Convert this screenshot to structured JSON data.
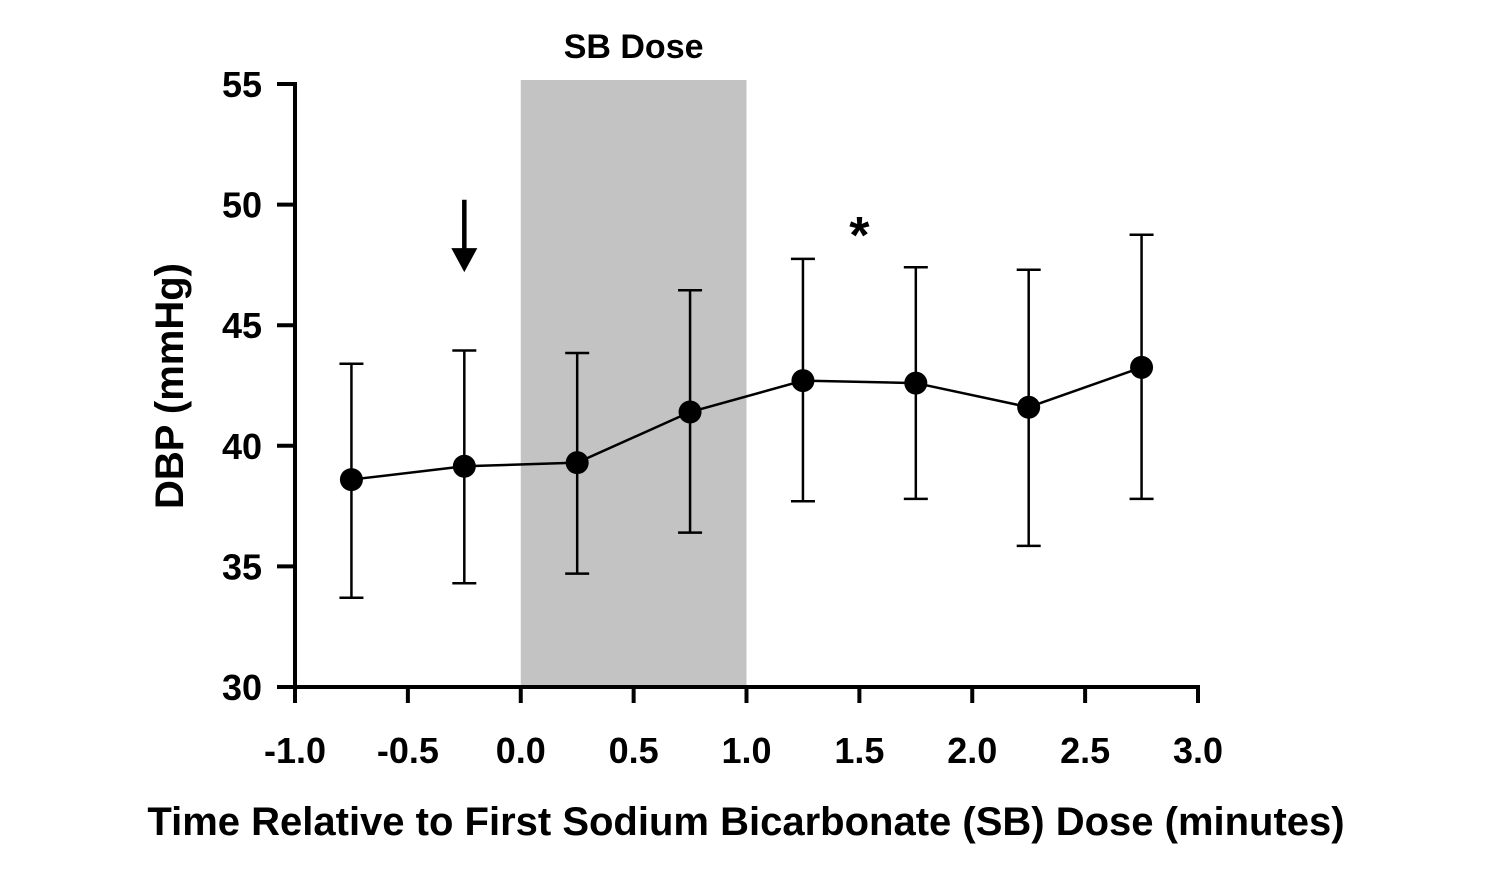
{
  "chart_data": {
    "type": "line",
    "title": "",
    "xlabel": "Time Relative to First Sodium Bicarbonate (SB) Dose (minutes)",
    "ylabel": "DBP (mmHg)",
    "xlim": [
      -1.0,
      3.0
    ],
    "ylim": [
      30,
      55
    ],
    "xticks": [
      "-1.0",
      "-0.5",
      "0.0",
      "0.5",
      "1.0",
      "1.5",
      "2.0",
      "2.5",
      "3.0"
    ],
    "xtick_values": [
      -1.0,
      -0.5,
      0.0,
      0.5,
      1.0,
      1.5,
      2.0,
      2.5,
      3.0
    ],
    "yticks": [
      "30",
      "35",
      "40",
      "45",
      "50",
      "55"
    ],
    "ytick_values": [
      30,
      35,
      40,
      45,
      50,
      55
    ],
    "grid": false,
    "series": [
      {
        "name": "DBP",
        "x": [
          -0.75,
          -0.25,
          0.25,
          0.75,
          1.25,
          1.75,
          2.25,
          2.75
        ],
        "y": [
          38.6,
          39.15,
          39.3,
          41.4,
          42.7,
          42.6,
          41.6,
          43.25
        ],
        "err_low": [
          33.7,
          34.3,
          34.7,
          36.4,
          37.7,
          37.8,
          35.85,
          37.8
        ],
        "err_high": [
          43.4,
          43.95,
          43.85,
          46.45,
          47.75,
          47.4,
          47.3,
          48.75
        ],
        "color": "#000000"
      }
    ],
    "shaded_region": {
      "x_start": 0.0,
      "x_end": 1.0,
      "label": "SB Dose",
      "color": "#c3c3c3"
    },
    "annotations": [
      {
        "type": "arrow",
        "x": -0.25,
        "y_from": 50.2,
        "y_to": 47.2,
        "label": ""
      },
      {
        "type": "text",
        "x": 1.5,
        "y": 48.9,
        "label": "*"
      }
    ]
  }
}
